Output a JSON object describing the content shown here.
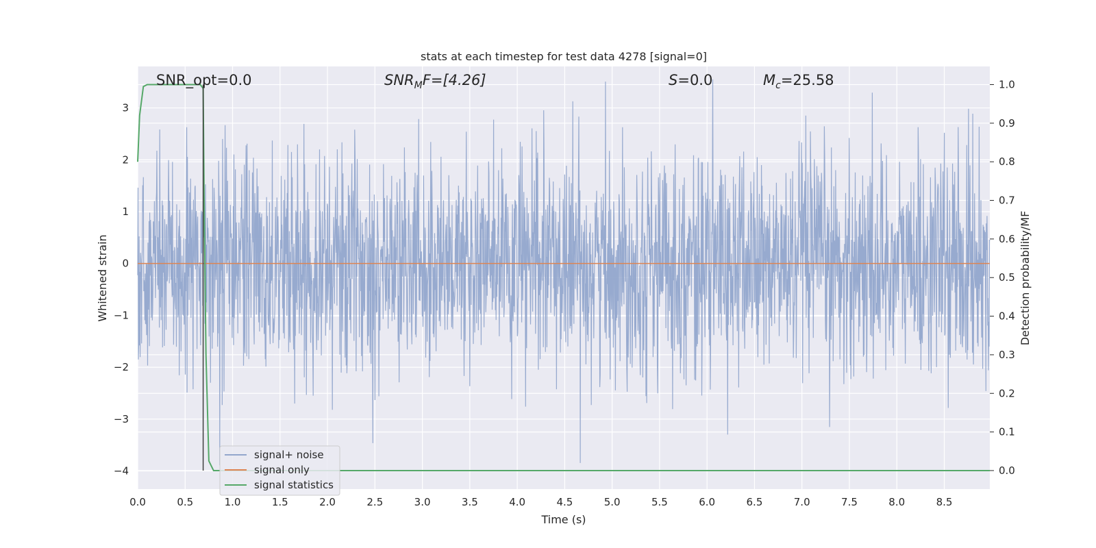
{
  "chart_data": {
    "type": "line",
    "title": "stats at each timestep for test data 4278 [signal=0]",
    "xlabel": "Time (s)",
    "ylabel_left": "Whitened strain",
    "ylabel_right": "Detection probability/MF",
    "xlim": [
      0.0,
      8.98
    ],
    "ylim_left": [
      -4.35,
      3.8
    ],
    "ylim_right": [
      -0.048,
      1.047
    ],
    "xticks": [
      "0.0",
      "0.5",
      "1.0",
      "1.5",
      "2.0",
      "2.5",
      "3.0",
      "3.5",
      "4.0",
      "4.5",
      "5.0",
      "5.5",
      "6.0",
      "6.5",
      "7.0",
      "7.5",
      "8.0",
      "8.5"
    ],
    "yticks_left": [
      "3",
      "2",
      "1",
      "0",
      "−1",
      "−2",
      "−3",
      "−4"
    ],
    "yticks_left_values": [
      3,
      2,
      1,
      0,
      -1,
      -2,
      -3,
      -4
    ],
    "yticks_right": [
      "1.0",
      "0.9",
      "0.8",
      "0.7",
      "0.6",
      "0.5",
      "0.4",
      "0.3",
      "0.2",
      "0.1",
      "0.0"
    ],
    "yticks_right_values": [
      1.0,
      0.9,
      0.8,
      0.7,
      0.6,
      0.5,
      0.4,
      0.3,
      0.2,
      0.1,
      0.0
    ],
    "grid": true,
    "annotations": {
      "snr_opt": "SNR_opt=0.0",
      "snr_mf_sym": "SNR",
      "snr_mf_sub": "M",
      "snr_mf_rest": "F=[4.26]",
      "s_sym": "S",
      "s_rest": "=0.0",
      "mc_sym": "M",
      "mc_sub": "c",
      "mc_rest": "=25.58"
    },
    "marker_line_x": 0.69,
    "series": [
      {
        "name": "signal+ noise",
        "color": "#92a6cc",
        "axis": "left",
        "description": "whitened noise, approx N(0,1), peaks to about +3.5 / -4.0"
      },
      {
        "name": "signal only",
        "color": "#dd8452",
        "axis": "left",
        "x": [
          0.0,
          8.98
        ],
        "y": [
          0.0,
          0.0
        ]
      },
      {
        "name": "signal statistics",
        "color": "#55a868",
        "axis": "right",
        "x": [
          0.0,
          0.02,
          0.06,
          0.1,
          0.3,
          0.5,
          0.6,
          0.66,
          0.69,
          0.7,
          0.72,
          0.75,
          0.8,
          0.85,
          1.0,
          3.0,
          5.0,
          7.0,
          8.98
        ],
        "y": [
          0.8,
          0.92,
          0.995,
          1.0,
          1.0,
          1.0,
          1.0,
          1.0,
          0.99,
          0.7,
          0.3,
          0.025,
          0.0,
          0.0,
          0.0,
          0.0,
          0.0,
          0.0,
          0.0
        ]
      }
    ],
    "legend": {
      "placement": "lower-left",
      "entries": [
        {
          "label": "signal+ noise",
          "color": "#92a6cc"
        },
        {
          "label": "signal only",
          "color": "#dd8452"
        },
        {
          "label": "signal statistics",
          "color": "#55a868"
        }
      ]
    }
  }
}
